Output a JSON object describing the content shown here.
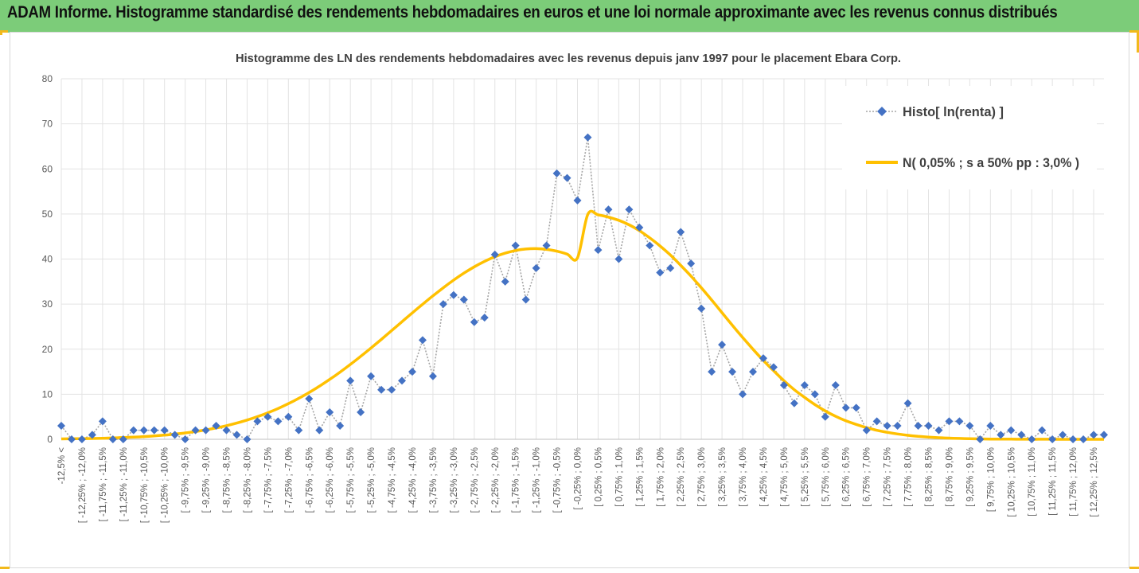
{
  "banner": {
    "title": "ADAM Informe. Histogramme standardisé des rendements hebdomadaires en euros et une loi normale approximante avec les revenus connus distribués"
  },
  "chart_data": {
    "type": "line",
    "title": "Histogramme des LN des rendements hebdomadaires avec les revenus depuis janv 1997 pour le placement Ebara Corp.",
    "xlabel": "",
    "ylabel": "",
    "ylim": [
      0,
      80
    ],
    "yticks": [
      0,
      10,
      20,
      30,
      40,
      50,
      60,
      70,
      80
    ],
    "grid": true,
    "legend_position": "top-right",
    "categories": [
      "-12,5% <",
      "[ -12,5% ; -12,25%",
      "[ -12,25% ; -12,0%",
      "[ -12,0% ; -11,75%",
      "[ -11,75% ; -11,5%",
      "[ -11,5% ; -11,25%",
      "[ -11,25% ; -11,0%",
      "[ -11,0% ; -10,75%",
      "[ -10,75% ; -10,5%",
      "[ -10,5% ; -10,25%",
      "[ -10,25% ; -10,0%",
      "[ -10,0% ; -9,75%",
      "[ -9,75% ; -9,5%",
      "[ -9,5% ; -9,25%",
      "[ -9,25% ; -9,0%",
      "[ -9,0% ; -8,75%",
      "[ -8,75% ; -8,5%",
      "[ -8,5% ; -8,25%",
      "[ -8,25% ; -8,0%",
      "[ -8,0% ; -7,75%",
      "[ -7,75% ; -7,5%",
      "[ -7,5% ; -7,25%",
      "[ -7,25% ; -7,0%",
      "[ -7,0% ; -6,75%",
      "[ -6,75% ; -6,5%",
      "[ -6,5% ; -6,25%",
      "[ -6,25% ; -6,0%",
      "[ -6,0% ; -5,75%",
      "[ -5,75% ; -5,5%",
      "[ -5,5% ; -5,25%",
      "[ -5,25% ; -5,0%",
      "[ -5,0% ; -4,75%",
      "[ -4,75% ; -4,5%",
      "[ -4,5% ; -4,25%",
      "[ -4,25% ; -4,0%",
      "[ -4,0% ; -3,75%",
      "[ -3,75% ; -3,5%",
      "[ -3,5% ; -3,25%",
      "[ -3,25% ; -3,0%",
      "[ -3,0% ; -2,75%",
      "[ -2,75% ; -2,5%",
      "[ -2,5% ; -2,25%",
      "[ -2,25% ; -2,0%",
      "[ -2,0% ; -1,75%",
      "[ -1,75% ; -1,5%",
      "[ -1,5% ; -1,25%",
      "[ -1,25% ; -1,0%",
      "[ -1,0% ; -0,75%",
      "[ -0,75% ; -0,5%",
      "[ -0,5% ; -0,25%",
      "[ -0,25% ; 0,0%",
      "[ 0,0% ; 0,25%",
      "[ 0,25% ; 0,5%",
      "[ 0,5% ; 0,75%",
      "[ 0,75% ; 1,0%",
      "[ 1,0% ; 1,25%",
      "[ 1,25% ; 1,5%",
      "[ 1,5% ; 1,75%",
      "[ 1,75% ; 2,0%",
      "[ 2,0% ; 2,25%",
      "[ 2,25% ; 2,5%",
      "[ 2,5% ; 2,75%",
      "[ 2,75% ; 3,0%",
      "[ 3,0% ; 3,25%",
      "[ 3,25% ; 3,5%",
      "[ 3,5% ; 3,75%",
      "[ 3,75% ; 4,0%",
      "[ 4,0% ; 4,25%",
      "[ 4,25% ; 4,5%",
      "[ 4,5% ; 4,75%",
      "[ 4,75% ; 5,0%",
      "[ 5,0% ; 5,25%",
      "[ 5,25% ; 5,5%",
      "[ 5,5% ; 5,75%",
      "[ 5,75% ; 6,0%",
      "[ 6,0% ; 6,25%",
      "[ 6,25% ; 6,5%",
      "[ 6,5% ; 6,75%",
      "[ 6,75% ; 7,0%",
      "[ 7,0% ; 7,25%",
      "[ 7,25% ; 7,5%",
      "[ 7,5% ; 7,75%",
      "[ 7,75% ; 8,0%",
      "[ 8,0% ; 8,25%",
      "[ 8,25% ; 8,5%",
      "[ 8,5% ; 8,75%",
      "[ 8,75% ; 9,0%",
      "[ 9,0% ; 9,25%",
      "[ 9,25% ; 9,5%",
      "[ 9,5% ; 9,75%",
      "[ 9,75% ; 10,0%",
      "[ 10,0% ; 10,25%",
      "[ 10,25% ; 10,5%",
      "[ 10,5% ; 10,75%",
      "[ 10,75% ; 11,0%",
      "[ 11,0% ; 11,25%",
      "[ 11,25% ; 11,5%",
      "[ 11,5% ; 11,75%",
      "[ 11,75% ; 12,0%",
      "[ 12,0% ; 12,25%",
      "[ 12,25% ; 12,5%",
      "[ 12,5% ; 12,75%"
    ],
    "series": [
      {
        "name": "Histo[ ln(renta) ]",
        "style": "dotted-line-diamond-markers",
        "color": "#4472c4",
        "line_color": "#a6a6a6",
        "values": [
          3,
          0,
          0,
          1,
          4,
          0,
          0,
          2,
          2,
          2,
          2,
          1,
          0,
          2,
          2,
          3,
          2,
          1,
          0,
          4,
          5,
          4,
          5,
          2,
          9,
          2,
          6,
          3,
          13,
          6,
          14,
          11,
          11,
          13,
          15,
          22,
          14,
          30,
          32,
          31,
          26,
          27,
          41,
          35,
          43,
          31,
          38,
          43,
          59,
          58,
          53,
          67,
          42,
          51,
          40,
          51,
          47,
          43,
          37,
          38,
          46,
          39,
          29,
          15,
          21,
          15,
          10,
          15,
          18,
          16,
          12,
          8,
          12,
          10,
          5,
          12,
          7,
          7,
          2,
          4,
          3,
          3,
          8,
          3,
          3,
          2,
          4,
          4,
          3,
          0,
          3,
          1,
          2,
          1,
          0,
          2,
          0,
          1,
          0,
          0,
          1,
          1
        ]
      },
      {
        "name": "N( 0,05% ; s a 50% pp : 3,0% )",
        "style": "smooth-line",
        "color": "#ffc000",
        "values": [
          0.08,
          0.11,
          0.14,
          0.18,
          0.23,
          0.3,
          0.38,
          0.48,
          0.6,
          0.75,
          0.93,
          1.15,
          1.41,
          1.72,
          2.09,
          2.52,
          3.02,
          3.6,
          4.27,
          5.03,
          5.88,
          6.84,
          7.91,
          9.09,
          10.38,
          11.78,
          13.29,
          14.9,
          16.61,
          18.4,
          20.26,
          22.17,
          24.12,
          26.09,
          28.05,
          29.97,
          31.84,
          33.63,
          35.32,
          36.87,
          38.27,
          39.49,
          40.51,
          41.31,
          41.89,
          42.22,
          42.31,
          42.14,
          41.74,
          41.1,
          40.24,
          49.9,
          49.8,
          49.3,
          48.6,
          47.6,
          46.3,
          44.7,
          42.9,
          40.9,
          38.6,
          36.2,
          33.6,
          30.9,
          28.1,
          25.3,
          22.6,
          20.0,
          17.5,
          15.2,
          13.0,
          11.0,
          9.3,
          7.7,
          6.3,
          5.1,
          4.1,
          3.3,
          2.6,
          2.0,
          1.55,
          1.18,
          0.89,
          0.66,
          0.49,
          0.36,
          0.26,
          0.19,
          0.13,
          0.09,
          0.06,
          0.04,
          0.03,
          0.02,
          0.01,
          0.01,
          0.01,
          0.0,
          0.0,
          0.0,
          0.0,
          0.0
        ]
      }
    ]
  }
}
